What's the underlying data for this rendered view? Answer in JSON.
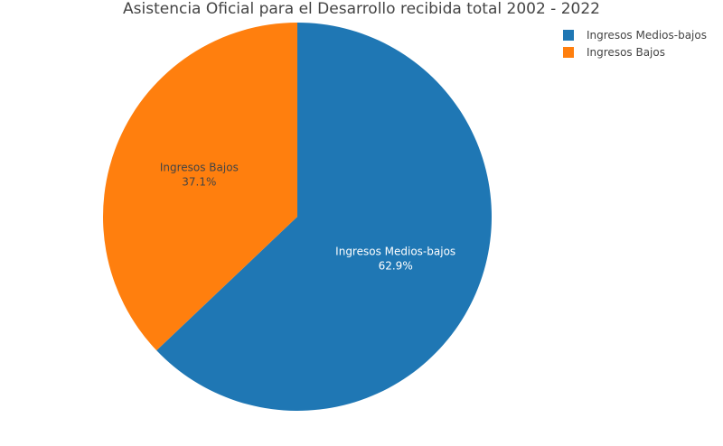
{
  "chart_data": {
    "type": "pie",
    "title": "Asistencia Oficial para el Desarrollo recibida total 2002 - 2022",
    "slices": [
      {
        "label": "Ingresos Medios-bajos",
        "value": 62.9,
        "percent_text": "62.9%",
        "color": "#1f77b4",
        "text_color": "#ffffff"
      },
      {
        "label": "Ingresos Bajos",
        "value": 37.1,
        "percent_text": "37.1%",
        "color": "#ff7f0e",
        "text_color": "#444444"
      }
    ],
    "legend_position": "top-right",
    "direction": "clockwise",
    "start": "top"
  }
}
